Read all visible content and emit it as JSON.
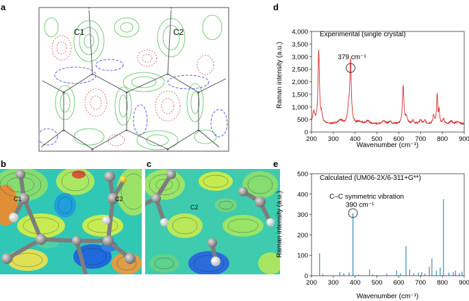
{
  "panels": {
    "a": {
      "label": "a",
      "atom_labels": [
        "C1",
        "C2"
      ]
    },
    "b": {
      "label": "b",
      "atom_labels": [
        "C1",
        "C2"
      ]
    },
    "c": {
      "label": "c",
      "atom_labels": [
        "C2"
      ]
    },
    "d": {
      "label": "d"
    },
    "e": {
      "label": "e"
    }
  },
  "colors": {
    "experimental_line": "#d62728",
    "calculated_line": "#2a7fb5",
    "contour_green": "#4fc24f",
    "contour_red": "#e24a4a",
    "contour_blue": "#3a3ad6",
    "bond": "#444444",
    "atom_gray": "#8c8c8c",
    "atom_white": "#f2f2f2"
  },
  "chart_data": [
    {
      "id": "d",
      "type": "line",
      "title": "Experimental (single crystal)",
      "xlabel": "Wavenumber (cm⁻¹)",
      "ylabel": "Raman intensity (a.u.)",
      "xlim": [
        200,
        900
      ],
      "ylim": [
        0,
        4000
      ],
      "xticks": [
        200,
        300,
        400,
        500,
        600,
        700,
        800,
        900
      ],
      "yticks": [
        0,
        500,
        1000,
        1500,
        2000,
        2500,
        3000,
        3500,
        4000
      ],
      "ytick_labels": [
        "0",
        "500",
        "1,000",
        "1,500",
        "2,000",
        "2,500",
        "3,000",
        "3,500",
        "4,000"
      ],
      "annotation": {
        "text": "379 cm⁻¹",
        "x": 379,
        "y": 2550
      },
      "series": [
        {
          "name": "Experimental",
          "baseline": 320,
          "peaks": [
            [
              210,
              450,
              6
            ],
            [
              233,
              2850,
              4
            ],
            [
              246,
              300,
              5
            ],
            [
              332,
              150,
              12
            ],
            [
              370,
              550,
              5
            ],
            [
              379,
              2450,
              4
            ],
            [
              420,
              80,
              15
            ],
            [
              458,
              120,
              8
            ],
            [
              530,
              130,
              8
            ],
            [
              560,
              110,
              6
            ],
            [
              620,
              1480,
              4
            ],
            [
              635,
              250,
              6
            ],
            [
              665,
              140,
              5
            ],
            [
              700,
              150,
              6
            ],
            [
              720,
              130,
              5
            ],
            [
              760,
              350,
              4
            ],
            [
              776,
              1150,
              3
            ],
            [
              785,
              500,
              3
            ],
            [
              805,
              200,
              4
            ],
            [
              840,
              120,
              6
            ],
            [
              870,
              90,
              8
            ]
          ]
        }
      ]
    },
    {
      "id": "e",
      "type": "bar",
      "title": "Calculated (UM06-2X/6-311+G**)",
      "xlabel": "Wavenumber (cm⁻¹)",
      "ylabel": "Raman intensity (a.u.)",
      "xlim": [
        200,
        900
      ],
      "ylim": [
        0,
        500
      ],
      "xticks": [
        200,
        300,
        400,
        500,
        600,
        700,
        800,
        900
      ],
      "yticks": [
        0,
        100,
        200,
        300,
        400,
        500
      ],
      "annotation": {
        "text": "C–C symmetric vibration",
        "text2": "390 cm⁻¹",
        "x": 390,
        "y": 307
      },
      "lines": [
        [
          237,
          110
        ],
        [
          252,
          8
        ],
        [
          330,
          18
        ],
        [
          348,
          12
        ],
        [
          372,
          15
        ],
        [
          390,
          307
        ],
        [
          415,
          5
        ],
        [
          466,
          30
        ],
        [
          480,
          6
        ],
        [
          545,
          10
        ],
        [
          590,
          25
        ],
        [
          608,
          12
        ],
        [
          633,
          145
        ],
        [
          650,
          30
        ],
        [
          668,
          12
        ],
        [
          690,
          15
        ],
        [
          705,
          18
        ],
        [
          720,
          10
        ],
        [
          740,
          45
        ],
        [
          752,
          85
        ],
        [
          772,
          25
        ],
        [
          790,
          40
        ],
        [
          805,
          375
        ],
        [
          830,
          15
        ],
        [
          850,
          18
        ],
        [
          860,
          25
        ],
        [
          878,
          12
        ],
        [
          890,
          20
        ]
      ]
    }
  ]
}
